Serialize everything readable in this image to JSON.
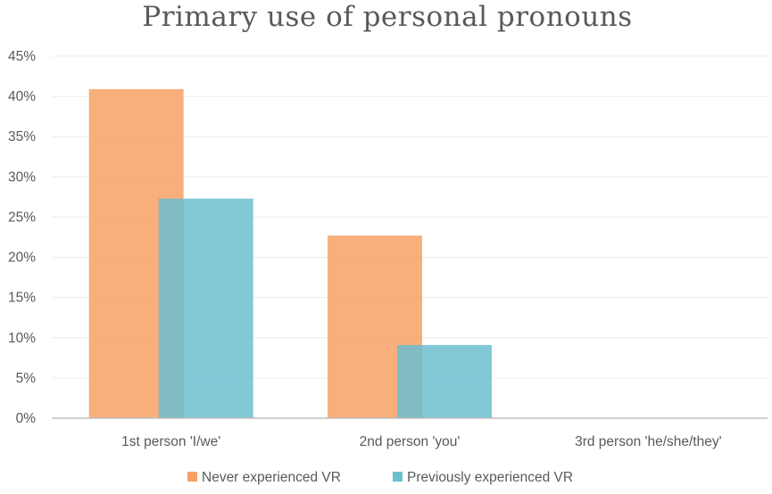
{
  "chart_data": {
    "type": "bar",
    "title": "Primary use of personal pronouns",
    "xlabel": "",
    "ylabel": "",
    "categories": [
      "1st person 'I/we'",
      "2nd person 'you'",
      "3rd person 'he/she/they'"
    ],
    "series": [
      {
        "name": "Never experienced VR",
        "values": [
          40.9,
          22.7,
          0
        ],
        "color": "#F7A164"
      },
      {
        "name": "Previously experienced VR",
        "values": [
          27.3,
          9.1,
          0
        ],
        "color": "#6CBED0"
      }
    ],
    "ylim": [
      0,
      45
    ],
    "yticks": [
      0,
      5,
      10,
      15,
      20,
      25,
      30,
      35,
      40,
      45
    ],
    "ytick_labels": [
      "0%",
      "5%",
      "10%",
      "15%",
      "20%",
      "25%",
      "30%",
      "35%",
      "40%",
      "45%"
    ],
    "grid": true,
    "legend": "bottom",
    "bar_overlap": true,
    "bar_opacity": 0.85
  }
}
